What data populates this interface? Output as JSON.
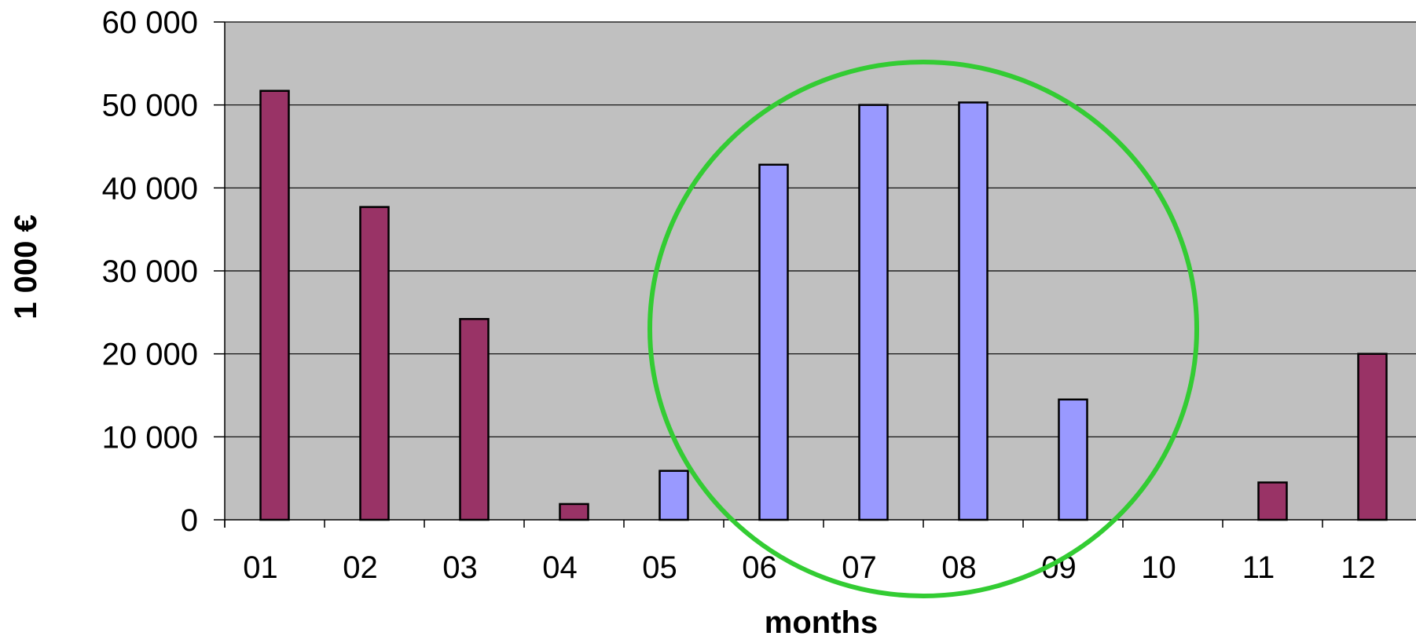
{
  "chart_data": {
    "type": "bar",
    "title": "",
    "xlabel": "months",
    "ylabel": "1 000 €",
    "categories": [
      "01",
      "02",
      "03",
      "04",
      "05",
      "06",
      "07",
      "08",
      "09",
      "10",
      "11",
      "12"
    ],
    "values": [
      51700,
      37700,
      24200,
      1900,
      5900,
      42800,
      50000,
      50300,
      14500,
      0,
      4500,
      20000
    ],
    "bar_colors": [
      "#993366",
      "#993366",
      "#993366",
      "#993366",
      "#9999ff",
      "#9999ff",
      "#9999ff",
      "#9999ff",
      "#9999ff",
      "#993366",
      "#993366",
      "#993366"
    ],
    "ylim": [
      0,
      60000
    ],
    "yticks": [
      0,
      10000,
      20000,
      30000,
      40000,
      50000,
      60000
    ],
    "ytick_labels": [
      "0",
      "10 000",
      "20 000",
      "30 000",
      "40 000",
      "50 000",
      "60 000"
    ],
    "grid": true,
    "plot_background": "#c0c0c0",
    "annotation": {
      "type": "circle",
      "color": "#33cc33",
      "center_month_index": 6.5,
      "center_value": 23000
    }
  }
}
